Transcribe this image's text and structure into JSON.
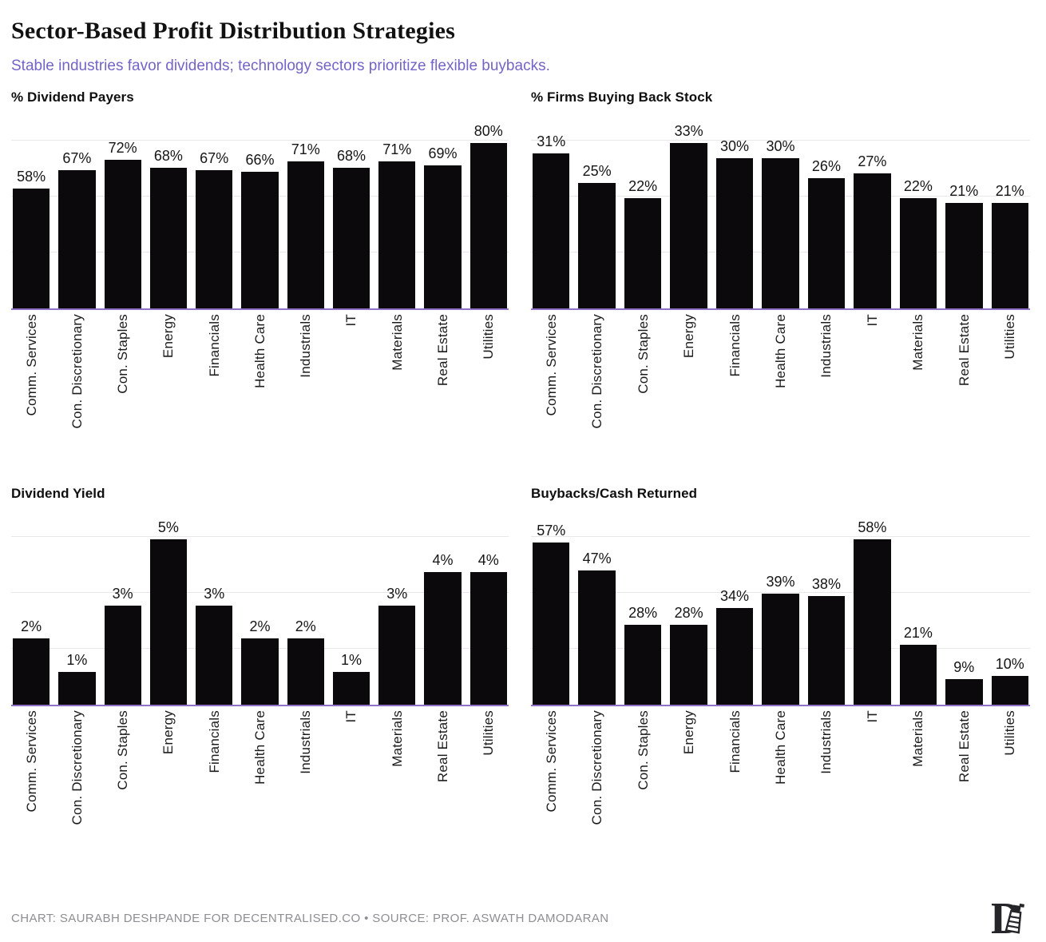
{
  "header": {
    "title": "Sector-Based Profit Distribution Strategies",
    "subtitle": "Stable industries favor dividends; technology sectors prioritize flexible buybacks."
  },
  "chart_data": [
    {
      "type": "bar",
      "title": "% Dividend Payers",
      "categories": [
        "Comm. Services",
        "Con. Discretionary",
        "Con. Staples",
        "Energy",
        "Financials",
        "Health Care",
        "Industrials",
        "IT",
        "Materials",
        "Real Estate",
        "Utilities"
      ],
      "values": [
        58,
        67,
        72,
        68,
        67,
        66,
        71,
        68,
        71,
        69,
        80
      ],
      "unit": "%",
      "value_labels": true,
      "ylim": [
        0,
        93
      ],
      "grid": "3 faint horizontal gridlines, no y-axis ticks",
      "legend": "none"
    },
    {
      "type": "bar",
      "title": "% Firms Buying Back Stock",
      "categories": [
        "Comm. Services",
        "Con. Discretionary",
        "Con. Staples",
        "Energy",
        "Financials",
        "Health Care",
        "Industrials",
        "IT",
        "Materials",
        "Real Estate",
        "Utilities"
      ],
      "values": [
        31,
        25,
        22,
        33,
        30,
        30,
        26,
        27,
        22,
        21,
        21
      ],
      "unit": "%",
      "value_labels": true,
      "ylim": [
        0,
        38
      ],
      "grid": "3 faint horizontal gridlines, no y-axis ticks",
      "legend": "none"
    },
    {
      "type": "bar",
      "title": "Dividend Yield",
      "categories": [
        "Comm. Services",
        "Con. Discretionary",
        "Con. Staples",
        "Energy",
        "Financials",
        "Health Care",
        "Industrials",
        "IT",
        "Materials",
        "Real Estate",
        "Utilities"
      ],
      "values": [
        2,
        1,
        3,
        5,
        3,
        2,
        2,
        1,
        3,
        4,
        4
      ],
      "unit": "%",
      "value_labels": true,
      "ylim": [
        0,
        5.8
      ],
      "grid": "3 faint horizontal gridlines, no y-axis ticks",
      "legend": "none"
    },
    {
      "type": "bar",
      "title": "Buybacks/Cash Returned",
      "categories": [
        "Comm. Services",
        "Con. Discretionary",
        "Con. Staples",
        "Energy",
        "Financials",
        "Health Care",
        "Industrials",
        "IT",
        "Materials",
        "Real Estate",
        "Utilities"
      ],
      "values": [
        57,
        47,
        28,
        28,
        34,
        39,
        38,
        58,
        21,
        9,
        10
      ],
      "unit": "%",
      "value_labels": true,
      "ylim": [
        0,
        67
      ],
      "grid": "3 faint horizontal gridlines, no y-axis ticks",
      "legend": "none"
    }
  ],
  "footer": {
    "credit_line": "CHART: SAURABH DESHPANDE FOR DECENTRALISED.CO • SOURCE: PROF. ASWATH DAMODARAN",
    "logo": "decentralised-d-lighthouse-logo"
  },
  "colors": {
    "bar": "#0b090c",
    "axis": "#8f72c8",
    "subtitle": "#7563c6",
    "gridline": "#e9e7ea",
    "footer_text": "#8e8e93",
    "title_text": "#111111"
  }
}
